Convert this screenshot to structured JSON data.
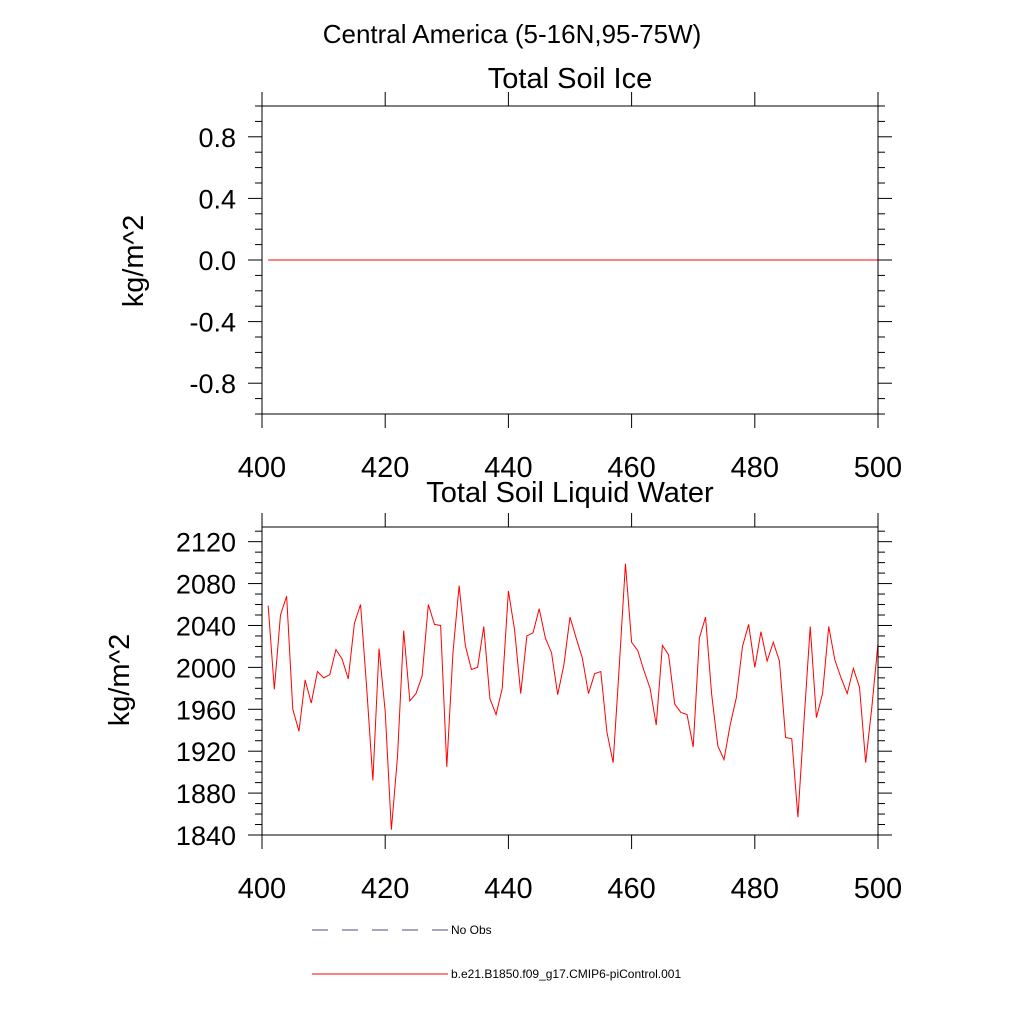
{
  "figure_title": "Central America (5-16N,95-75W)",
  "legend": {
    "no_obs_label": "No Obs",
    "model_label": "b.e21.B1850.f09_g17.CMIP6-piControl.001",
    "no_obs_color": "#4b4b8a",
    "model_color": "#ff0000"
  },
  "chart_data": [
    {
      "type": "line",
      "title": "Total Soil Ice",
      "ylabel": "kg/m^2",
      "xlabel": "",
      "xlim": [
        400,
        500
      ],
      "ylim": [
        -1.0,
        1.0
      ],
      "x_ticks": [
        "400",
        "420",
        "440",
        "460",
        "480",
        "500"
      ],
      "y_ticks": [
        "0.8",
        "0.4",
        "0.0",
        "-0.4",
        "-0.8"
      ],
      "series": [
        {
          "color": "#ff0000",
          "x": [
            401,
            500
          ],
          "values": [
            0.0,
            0.0
          ]
        }
      ]
    },
    {
      "type": "line",
      "title": "Total Soil Liquid Water",
      "ylabel": "kg/m^2",
      "xlabel": "",
      "xlim": [
        400,
        500
      ],
      "ylim": [
        1840,
        2134
      ],
      "x_ticks": [
        "400",
        "420",
        "440",
        "460",
        "480",
        "500"
      ],
      "y_ticks": [
        "2120",
        "2080",
        "2040",
        "2000",
        "1960",
        "1920",
        "1880",
        "1840"
      ],
      "series": [
        {
          "color": "#ff0000",
          "x_start": 401,
          "values": [
            2059,
            1979,
            2050,
            2068,
            1960,
            1939,
            1988,
            1966,
            1996,
            1990,
            1993,
            2017,
            2008,
            1989,
            2042,
            2060,
            1980,
            1892,
            2018,
            1958,
            1845,
            1915,
            2035,
            1968,
            1975,
            1992,
            2060,
            2041,
            2040,
            1905,
            2014,
            2078,
            2021,
            1998,
            2000,
            2039,
            1970,
            1955,
            1980,
            2073,
            2036,
            1975,
            2030,
            2033,
            2056,
            2028,
            2014,
            1974,
            2002,
            2048,
            2028,
            2009,
            1975,
            1994,
            1996,
            1938,
            1909,
            2001,
            2099,
            2024,
            2016,
            1997,
            1980,
            1945,
            2021,
            2012,
            1965,
            1957,
            1955,
            1924,
            2028,
            2048,
            1974,
            1925,
            1912,
            1945,
            1971,
            2020,
            2041,
            2000,
            2034,
            2006,
            2024,
            2006,
            1933,
            1932,
            1857,
            1950,
            2039,
            1952,
            1975,
            2039,
            2007,
            1990,
            1975,
            1999,
            1981,
            1909,
            1962,
            2023
          ]
        }
      ]
    }
  ]
}
